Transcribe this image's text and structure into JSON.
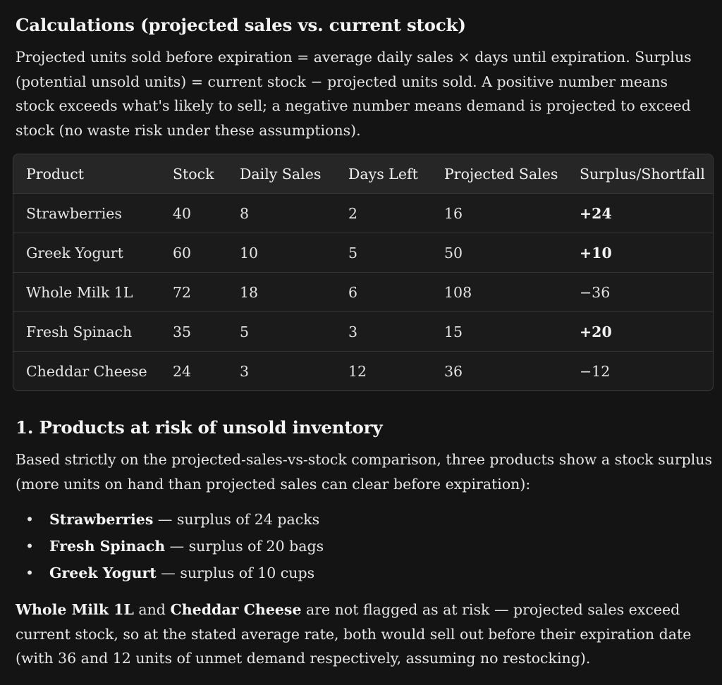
{
  "calc": {
    "heading": "Calculations (projected sales vs. current stock)",
    "intro": "Projected units sold before expiration = average daily sales × days until expiration. Surplus (potential unsold units) = current stock − projected units sold. A positive number means stock exceeds what's likely to sell; a negative number means demand is projected to exceed stock (no waste risk under these assumptions)."
  },
  "table": {
    "headers": {
      "product": "Product",
      "stock": "Stock",
      "daily": "Daily Sales",
      "days": "Days Left",
      "projected": "Projected Sales",
      "surplus": "Surplus/Shortfall"
    },
    "rows": [
      {
        "product": "Strawberries",
        "stock": "40",
        "daily": "8",
        "days": "2",
        "projected": "16",
        "surplus": "+24"
      },
      {
        "product": "Greek Yogurt",
        "stock": "60",
        "daily": "10",
        "days": "5",
        "projected": "50",
        "surplus": "+10"
      },
      {
        "product": "Whole Milk 1L",
        "stock": "72",
        "daily": "18",
        "days": "6",
        "projected": "108",
        "surplus": "−36"
      },
      {
        "product": "Fresh Spinach",
        "stock": "35",
        "daily": "5",
        "days": "3",
        "projected": "15",
        "surplus": "+20"
      },
      {
        "product": "Cheddar Cheese",
        "stock": "24",
        "daily": "3",
        "days": "12",
        "projected": "36",
        "surplus": "−12"
      }
    ]
  },
  "risk": {
    "heading": "1. Products at risk of unsold inventory",
    "intro": "Based strictly on the projected-sales-vs-stock comparison, three products show a stock surplus (more units on hand than projected sales can clear before expiration):",
    "bullet_glyph": "•",
    "items": [
      {
        "name": "Strawberries",
        "text": " — surplus of 24 packs"
      },
      {
        "name": "Fresh Spinach",
        "text": " — surplus of 20 bags"
      },
      {
        "name": "Greek Yogurt",
        "text": " — surplus of 10 cups"
      }
    ],
    "closing": {
      "name1": "Whole Milk 1L",
      "and": " and ",
      "name2": "Cheddar Cheese",
      "rest": " are not flagged as at risk — projected sales exceed current stock, so at the stated average rate, both would sell out before their expiration date (with 36 and 12 units of unmet demand respectively, assuming no restocking)."
    }
  }
}
